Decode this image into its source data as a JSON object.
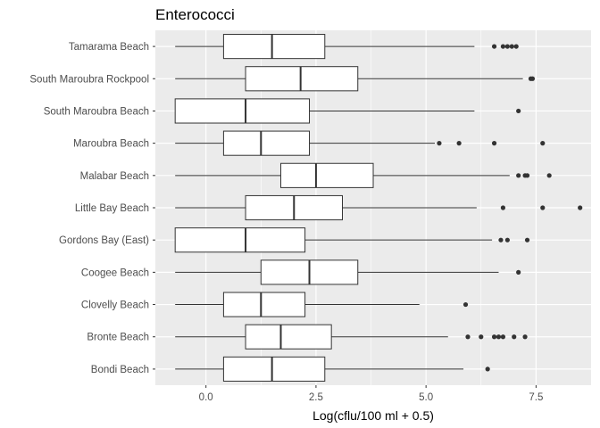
{
  "chart_data": {
    "type": "boxplot",
    "orientation": "horizontal",
    "title": "Enterococci",
    "xlabel": "Log(cflu/100 ml + 0.5)",
    "ylabel": "",
    "xlim": [
      -1.15,
      8.75
    ],
    "xticks": [
      0,
      2.5,
      5,
      7.5
    ],
    "xtick_labels": [
      "0.0",
      "2.5",
      "5.0",
      "7.5"
    ],
    "grid": true,
    "legend": "none",
    "colors": {
      "panel": "#ebebeb",
      "grid": "#ffffff",
      "box_fill": "#ffffff",
      "box_stroke": "#333333",
      "outlier": "#333333"
    },
    "categories": [
      "Tamarama Beach",
      "South Maroubra Rockpool",
      "South Maroubra Beach",
      "Maroubra Beach",
      "Malabar Beach",
      "Little Bay Beach",
      "Gordons Bay (East)",
      "Coogee Beach",
      "Clovelly Beach",
      "Bronte Beach",
      "Bondi Beach"
    ],
    "boxes": [
      {
        "category": "Tamarama Beach",
        "whisker_low": -0.7,
        "q1": 0.4,
        "median": 1.5,
        "q3": 2.7,
        "whisker_high": 6.1,
        "outliers": [
          6.55,
          6.75,
          6.85,
          6.95,
          7.05
        ]
      },
      {
        "category": "South Maroubra Rockpool",
        "whisker_low": -0.7,
        "q1": 0.9,
        "median": 2.15,
        "q3": 3.45,
        "whisker_high": 7.2,
        "outliers": [
          7.38,
          7.42
        ]
      },
      {
        "category": "South Maroubra Beach",
        "whisker_low": -0.7,
        "q1": -0.7,
        "median": 0.9,
        "q3": 2.35,
        "whisker_high": 6.1,
        "outliers": [
          7.1
        ]
      },
      {
        "category": "Maroubra Beach",
        "whisker_low": -0.7,
        "q1": 0.4,
        "median": 1.25,
        "q3": 2.35,
        "whisker_high": 5.2,
        "outliers": [
          5.3,
          5.75,
          6.55,
          7.65
        ]
      },
      {
        "category": "Malabar Beach",
        "whisker_low": -0.7,
        "q1": 1.7,
        "median": 2.5,
        "q3": 3.8,
        "whisker_high": 6.9,
        "outliers": [
          7.1,
          7.25,
          7.3,
          7.8
        ]
      },
      {
        "category": "Little Bay Beach",
        "whisker_low": -0.7,
        "q1": 0.9,
        "median": 2.0,
        "q3": 3.1,
        "whisker_high": 6.15,
        "outliers": [
          6.75,
          7.65,
          8.5
        ]
      },
      {
        "category": "Gordons Bay (East)",
        "whisker_low": -0.7,
        "q1": -0.7,
        "median": 0.9,
        "q3": 2.25,
        "whisker_high": 6.5,
        "outliers": [
          6.7,
          6.85,
          7.3
        ]
      },
      {
        "category": "Coogee Beach",
        "whisker_low": -0.7,
        "q1": 1.25,
        "median": 2.35,
        "q3": 3.45,
        "whisker_high": 6.65,
        "outliers": [
          7.1
        ]
      },
      {
        "category": "Clovelly Beach",
        "whisker_low": -0.7,
        "q1": 0.4,
        "median": 1.25,
        "q3": 2.25,
        "whisker_high": 4.85,
        "outliers": [
          5.9
        ]
      },
      {
        "category": "Bronte Beach",
        "whisker_low": -0.7,
        "q1": 0.9,
        "median": 1.7,
        "q3": 2.85,
        "whisker_high": 5.5,
        "outliers": [
          5.95,
          6.25,
          6.55,
          6.65,
          6.75,
          7.0,
          7.25
        ]
      },
      {
        "category": "Bondi Beach",
        "whisker_low": -0.7,
        "q1": 0.4,
        "median": 1.5,
        "q3": 2.7,
        "whisker_high": 5.85,
        "outliers": [
          6.4
        ]
      }
    ]
  }
}
